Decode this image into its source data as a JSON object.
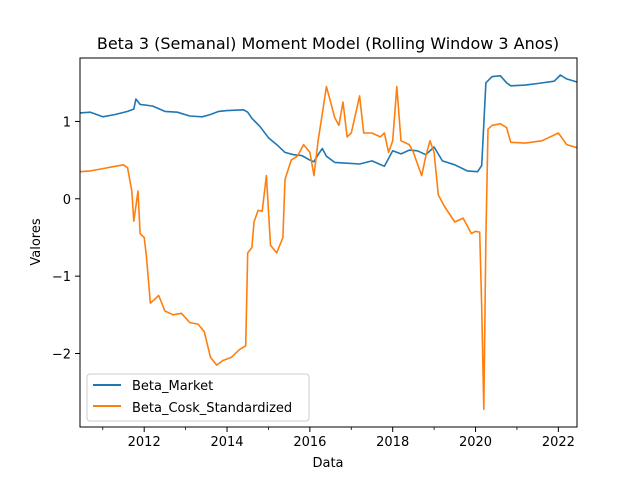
{
  "chart_data": {
    "type": "line",
    "title": "Beta 3 (Semanal) Moment Model (Rolling Window 3 Anos)",
    "xlabel": "Data",
    "ylabel": "Valores",
    "xlim": [
      2010.45,
      2022.45
    ],
    "ylim": [
      -2.95,
      1.82
    ],
    "x_ticks": [
      2012,
      2014,
      2016,
      2018,
      2020,
      2022
    ],
    "x_minor_ticks": [
      2011,
      2013,
      2015,
      2017,
      2019,
      2021
    ],
    "y_ticks": [
      -2,
      -1,
      0,
      1
    ],
    "grid": false,
    "legend_position": "lower-left",
    "series": [
      {
        "name": "Beta_Market",
        "color": "#1f77b4",
        "points": [
          [
            2010.45,
            1.11
          ],
          [
            2010.7,
            1.12
          ],
          [
            2011.0,
            1.06
          ],
          [
            2011.3,
            1.09
          ],
          [
            2011.6,
            1.13
          ],
          [
            2011.75,
            1.16
          ],
          [
            2011.8,
            1.29
          ],
          [
            2011.9,
            1.22
          ],
          [
            2012.2,
            1.2
          ],
          [
            2012.5,
            1.13
          ],
          [
            2012.8,
            1.12
          ],
          [
            2013.1,
            1.07
          ],
          [
            2013.4,
            1.06
          ],
          [
            2013.6,
            1.09
          ],
          [
            2013.8,
            1.13
          ],
          [
            2014.0,
            1.14
          ],
          [
            2014.4,
            1.15
          ],
          [
            2014.5,
            1.12
          ],
          [
            2014.6,
            1.04
          ],
          [
            2014.8,
            0.93
          ],
          [
            2015.0,
            0.79
          ],
          [
            2015.2,
            0.7
          ],
          [
            2015.4,
            0.6
          ],
          [
            2015.6,
            0.57
          ],
          [
            2015.8,
            0.56
          ],
          [
            2016.0,
            0.5
          ],
          [
            2016.1,
            0.48
          ],
          [
            2016.2,
            0.57
          ],
          [
            2016.3,
            0.65
          ],
          [
            2016.4,
            0.55
          ],
          [
            2016.6,
            0.47
          ],
          [
            2016.9,
            0.46
          ],
          [
            2017.2,
            0.45
          ],
          [
            2017.5,
            0.49
          ],
          [
            2017.8,
            0.42
          ],
          [
            2018.0,
            0.62
          ],
          [
            2018.2,
            0.58
          ],
          [
            2018.4,
            0.63
          ],
          [
            2018.6,
            0.62
          ],
          [
            2018.8,
            0.57
          ],
          [
            2019.0,
            0.67
          ],
          [
            2019.2,
            0.49
          ],
          [
            2019.5,
            0.44
          ],
          [
            2019.8,
            0.36
          ],
          [
            2020.05,
            0.35
          ],
          [
            2020.15,
            0.43
          ],
          [
            2020.25,
            1.5
          ],
          [
            2020.4,
            1.58
          ],
          [
            2020.6,
            1.59
          ],
          [
            2020.75,
            1.5
          ],
          [
            2020.85,
            1.46
          ],
          [
            2021.2,
            1.47
          ],
          [
            2021.5,
            1.49
          ],
          [
            2021.9,
            1.52
          ],
          [
            2022.05,
            1.6
          ],
          [
            2022.2,
            1.55
          ],
          [
            2022.45,
            1.51
          ]
        ]
      },
      {
        "name": "Beta_Cosk_Standardized",
        "color": "#ff7f0e",
        "points": [
          [
            2010.45,
            0.35
          ],
          [
            2010.7,
            0.36
          ],
          [
            2011.0,
            0.39
          ],
          [
            2011.3,
            0.42
          ],
          [
            2011.5,
            0.44
          ],
          [
            2011.6,
            0.4
          ],
          [
            2011.7,
            0.1
          ],
          [
            2011.75,
            -0.29
          ],
          [
            2011.85,
            0.1
          ],
          [
            2011.9,
            -0.45
          ],
          [
            2012.0,
            -0.5
          ],
          [
            2012.05,
            -0.73
          ],
          [
            2012.15,
            -1.35
          ],
          [
            2012.25,
            -1.3
          ],
          [
            2012.35,
            -1.25
          ],
          [
            2012.5,
            -1.45
          ],
          [
            2012.7,
            -1.5
          ],
          [
            2012.9,
            -1.48
          ],
          [
            2013.1,
            -1.6
          ],
          [
            2013.3,
            -1.62
          ],
          [
            2013.45,
            -1.72
          ],
          [
            2013.6,
            -2.05
          ],
          [
            2013.75,
            -2.15
          ],
          [
            2013.9,
            -2.09
          ],
          [
            2014.1,
            -2.05
          ],
          [
            2014.3,
            -1.95
          ],
          [
            2014.45,
            -1.9
          ],
          [
            2014.5,
            -0.7
          ],
          [
            2014.6,
            -0.63
          ],
          [
            2014.65,
            -0.3
          ],
          [
            2014.75,
            -0.15
          ],
          [
            2014.85,
            -0.16
          ],
          [
            2014.95,
            0.3
          ],
          [
            2015.05,
            -0.6
          ],
          [
            2015.2,
            -0.7
          ],
          [
            2015.35,
            -0.5
          ],
          [
            2015.4,
            0.25
          ],
          [
            2015.55,
            0.5
          ],
          [
            2015.7,
            0.55
          ],
          [
            2015.85,
            0.7
          ],
          [
            2016.0,
            0.6
          ],
          [
            2016.1,
            0.3
          ],
          [
            2016.2,
            0.75
          ],
          [
            2016.3,
            1.1
          ],
          [
            2016.4,
            1.45
          ],
          [
            2016.5,
            1.25
          ],
          [
            2016.6,
            1.05
          ],
          [
            2016.7,
            0.95
          ],
          [
            2016.8,
            1.25
          ],
          [
            2016.9,
            0.8
          ],
          [
            2017.0,
            0.85
          ],
          [
            2017.2,
            1.33
          ],
          [
            2017.3,
            0.85
          ],
          [
            2017.5,
            0.85
          ],
          [
            2017.7,
            0.8
          ],
          [
            2017.8,
            0.85
          ],
          [
            2017.9,
            0.6
          ],
          [
            2018.0,
            0.75
          ],
          [
            2018.1,
            1.45
          ],
          [
            2018.2,
            0.75
          ],
          [
            2018.4,
            0.7
          ],
          [
            2018.5,
            0.6
          ],
          [
            2018.6,
            0.45
          ],
          [
            2018.7,
            0.3
          ],
          [
            2018.8,
            0.55
          ],
          [
            2018.9,
            0.75
          ],
          [
            2019.0,
            0.6
          ],
          [
            2019.1,
            0.05
          ],
          [
            2019.25,
            -0.1
          ],
          [
            2019.5,
            -0.3
          ],
          [
            2019.7,
            -0.25
          ],
          [
            2019.9,
            -0.45
          ],
          [
            2020.0,
            -0.42
          ],
          [
            2020.1,
            -0.43
          ],
          [
            2020.15,
            -1.4
          ],
          [
            2020.2,
            -2.72
          ],
          [
            2020.25,
            -0.5
          ],
          [
            2020.3,
            0.9
          ],
          [
            2020.4,
            0.95
          ],
          [
            2020.6,
            0.97
          ],
          [
            2020.75,
            0.92
          ],
          [
            2020.85,
            0.73
          ],
          [
            2021.2,
            0.72
          ],
          [
            2021.6,
            0.75
          ],
          [
            2022.0,
            0.85
          ],
          [
            2022.2,
            0.7
          ],
          [
            2022.45,
            0.66
          ]
        ]
      }
    ]
  }
}
